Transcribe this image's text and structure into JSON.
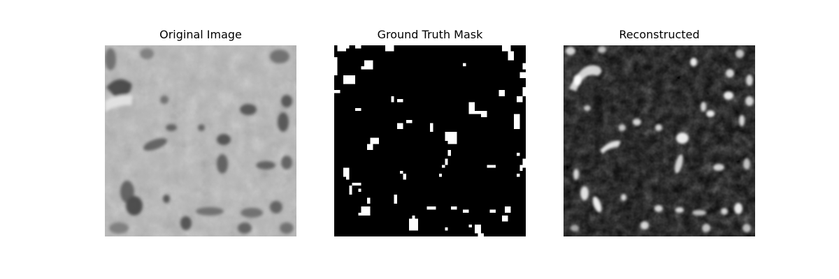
{
  "panels": [
    {
      "title": "Original Image"
    },
    {
      "title": "Ground Truth Mask"
    },
    {
      "title": "Reconstructed"
    }
  ]
}
